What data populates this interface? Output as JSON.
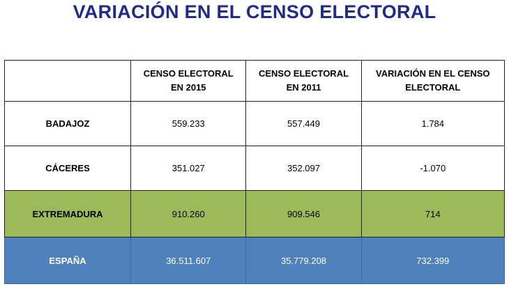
{
  "title": "VARIACIÓN EN EL CENSO ELECTORAL",
  "table": {
    "header": [
      "",
      "CENSO ELECTORAL EN 2015",
      "CENSO ELECTORAL EN 2011",
      "VARIACIÓN EN EL CENSO ELECTORAL"
    ],
    "rows": [
      [
        "BADAJOZ",
        "559.233",
        "557.449",
        "1.784"
      ],
      [
        "CÁCERES",
        "351.027",
        "352.097",
        "-1.070"
      ],
      [
        "EXTREMADURA",
        "910.260",
        "909.546",
        "714"
      ],
      [
        "ESPAÑA",
        "36.511.607",
        "35.779.208",
        "732.399"
      ]
    ]
  }
}
